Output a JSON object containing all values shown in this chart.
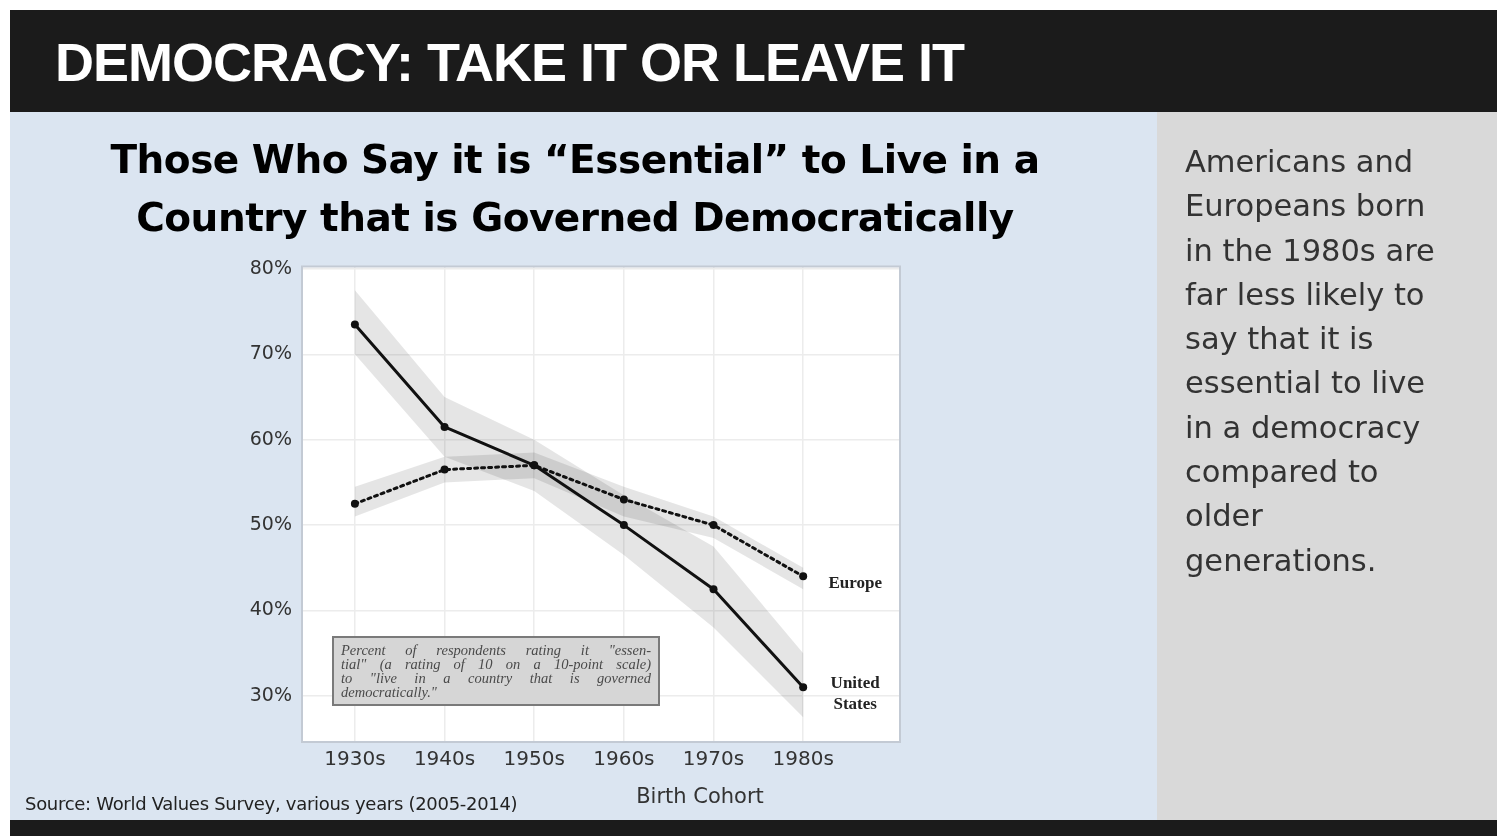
{
  "chart_data": {
    "type": "line",
    "title": "DEMOCRACY: TAKE IT OR LEAVE IT",
    "subtitle": "Those Who Say it is “Essential” to Live in a Country that is Governed Democratically",
    "xlabel": "Birth Cohort",
    "categories": [
      "1930s",
      "1940s",
      "1950s",
      "1960s",
      "1970s",
      "1980s"
    ],
    "series": [
      {
        "name": "United States",
        "color": "#111111",
        "line_style": "solid",
        "values": [
          73.5,
          61.5,
          57,
          50,
          42.5,
          31
        ],
        "lower": [
          70,
          58,
          54,
          46.5,
          38,
          27.5
        ],
        "upper": [
          77.5,
          65,
          60,
          53.5,
          47.5,
          35
        ]
      },
      {
        "name": "Europe",
        "color": "#111111",
        "line_style": "dotted",
        "values": [
          52.5,
          56.5,
          57,
          53,
          50,
          44
        ],
        "lower": [
          51,
          55,
          55.5,
          51,
          48.5,
          42.5
        ],
        "upper": [
          54.5,
          58,
          58.5,
          54.5,
          51,
          45
        ]
      }
    ],
    "ylim": [
      24.6,
      80.3
    ],
    "yticks": [
      {
        "value": 30,
        "label": "30%"
      },
      {
        "value": 40,
        "label": "40%"
      },
      {
        "value": 50,
        "label": "50%"
      },
      {
        "value": 60,
        "label": "60%"
      },
      {
        "value": 70,
        "label": "70%"
      },
      {
        "value": 80,
        "label": "80%"
      }
    ],
    "grid": true,
    "marker": "circle",
    "annotations": [
      "Percent of respondents rating it \"essen-\ntial\" (a rating of 10 on a 10-point scale)\nto \"live in a country that is governed\ndemocratically.\"",
      "Source: World Values Survey, various years (2005-2014)",
      "Americans and Europeans born in the 1980s are far less likely to say that it is essential to live in a democracy compared to older generations."
    ]
  }
}
